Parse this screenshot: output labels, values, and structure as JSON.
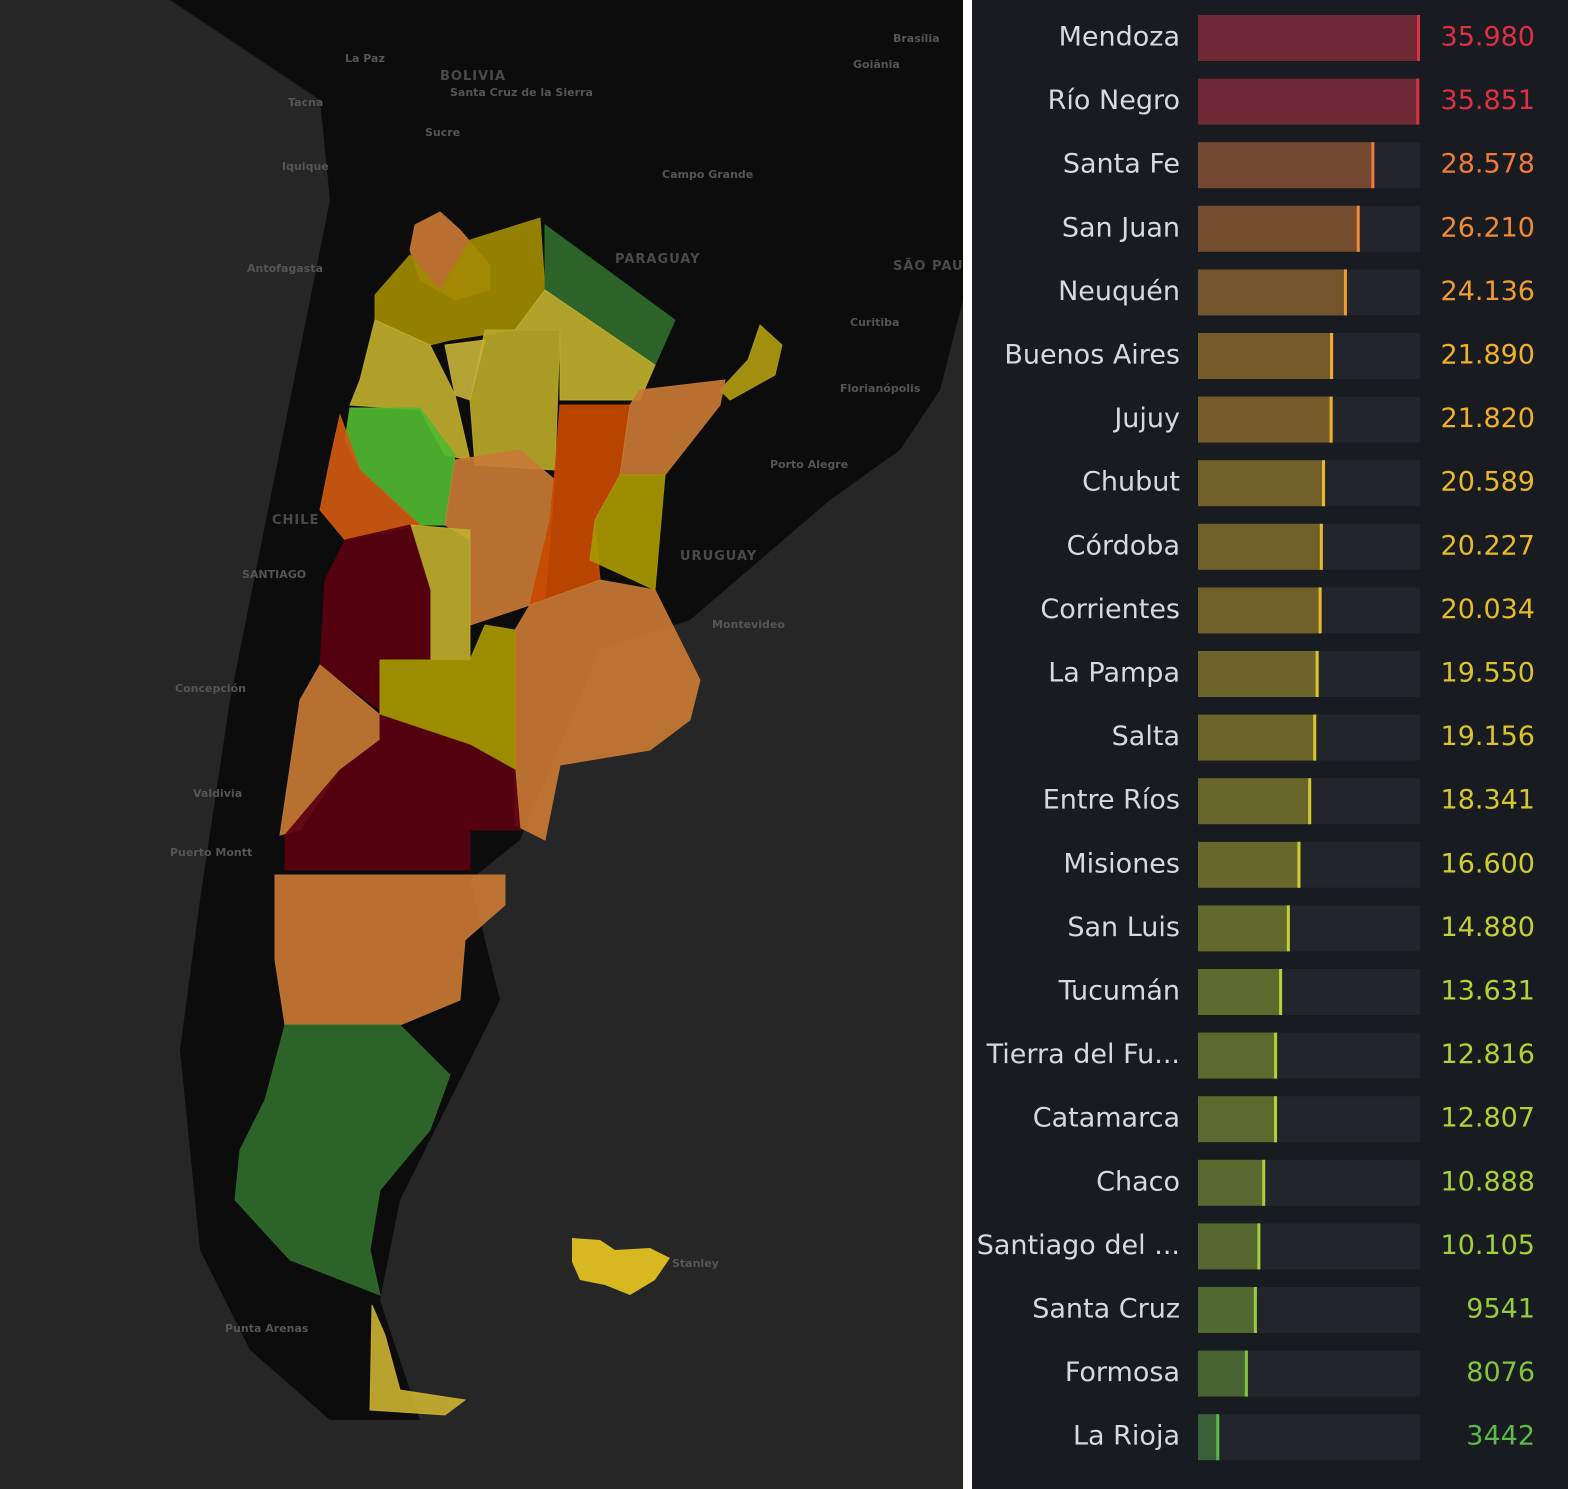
{
  "chart_data": {
    "type": "bar",
    "orientation": "horizontal",
    "categories": [
      "Mendoza",
      "Río Negro",
      "Santa Fe",
      "San Juan",
      "Neuquén",
      "Buenos Aires",
      "Jujuy",
      "Chubut",
      "Córdoba",
      "Corrientes",
      "La Pampa",
      "Salta",
      "Entre Ríos",
      "Misiones",
      "San Luis",
      "Tucumán",
      "Tierra del Fu...",
      "Catamarca",
      "Chaco",
      "Santiago del ...",
      "Santa Cruz",
      "Formosa",
      "La Rioja"
    ],
    "values": [
      35980,
      35851,
      28578,
      26210,
      24136,
      21890,
      21820,
      20589,
      20227,
      20034,
      19550,
      19156,
      18341,
      16600,
      14880,
      13631,
      12816,
      12807,
      10888,
      10105,
      9541,
      8076,
      3442
    ],
    "value_labels": [
      "35.980",
      "35.851",
      "28.578",
      "26.210",
      "24.136",
      "21.890",
      "21.820",
      "20.589",
      "20.227",
      "20.034",
      "19.550",
      "19.156",
      "18.341",
      "16.600",
      "14.880",
      "13.631",
      "12.816",
      "12.807",
      "10.888",
      "10.105",
      "9541",
      "8076",
      "3442"
    ],
    "colors": [
      "#e02f44",
      "#e02f44",
      "#f07a3a",
      "#f08a36",
      "#f09c30",
      "#f2b02a",
      "#f2b02a",
      "#ebb82a",
      "#e8ba2a",
      "#e5bb2a",
      "#dcc22c",
      "#dac42c",
      "#d4c82e",
      "#ccce30",
      "#c2d032",
      "#bad034",
      "#b6d034",
      "#b6d034",
      "#a8d038",
      "#a0d03a",
      "#98cc3c",
      "#82c440",
      "#5fb84a"
    ],
    "xlim": [
      0,
      35980
    ]
  },
  "map": {
    "labels": [
      "La Paz",
      "BOLIVIA",
      "Santa Cruz de la Sierra",
      "Tacna",
      "Sucre",
      "Iquique",
      "Brasília",
      "Goiânia",
      "Campo Grande",
      "PARAGUAY",
      "SÃO PAUL",
      "Antofagasta",
      "Curitiba",
      "Florianópolis",
      "Porto Alegre",
      "CHILE",
      "SANTIAGO",
      "URUGUAY",
      "Montevideo",
      "Concepción",
      "Valdivia",
      "Puerto Montt",
      "Punta Arenas",
      "Stanley"
    ]
  }
}
